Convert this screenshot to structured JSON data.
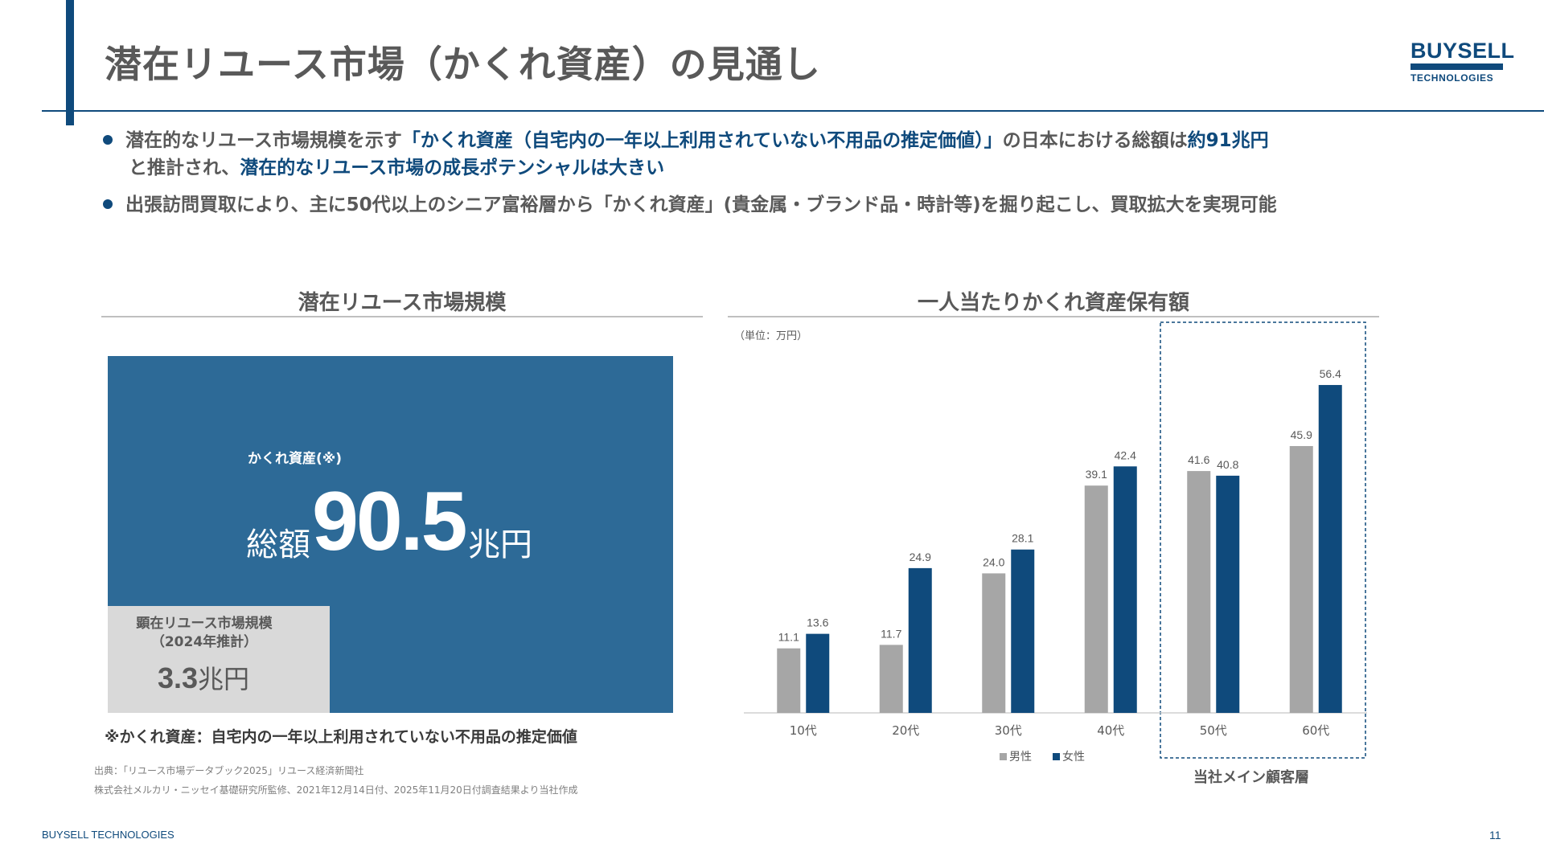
{
  "header": {
    "title": "潜在リユース市場（かくれ資産）の見通し",
    "logo_main": "BUYSELL",
    "logo_sub": "TECHNOLOGIES"
  },
  "bullets": [
    {
      "line1_a": "潜在的なリユース市場規模を示す",
      "line1_b": "「かくれ資産（自宅内の一年以上利用されていない不用品の推定価値）」",
      "line1_c": "の日本における総額は",
      "line1_d": "約91兆円",
      "line2_a": "と推計され、",
      "line2_b": "潜在的なリユース市場の成長ポテンシャルは大きい"
    },
    {
      "text": "出張訪問買取により、主に50代以上のシニア富裕層から「かくれ資産」(貴金属・ブランド品・時計等)を掘り起こし、買取拡大を実現可能"
    }
  ],
  "left_panel": {
    "section_title": "潜在リユース市場規模",
    "hidden_asset_label": "かくれ資産(※)",
    "total_prefix": "総額",
    "total_value": "90.5",
    "total_unit": "兆円",
    "current_label_line1": "顕在リユース市場規模",
    "current_label_line2": "（2024年推計）",
    "current_value": "3.3",
    "current_unit": "兆円",
    "footnote": "※かくれ資産：自宅内の一年以上利用されていない不用品の推定価値",
    "source_1": "出典：「リユース市場データブック2025」リユース経済新聞社",
    "source_2": "株式会社メルカリ・ニッセイ基礎研究所監修、2021年12月14日付、2025年11月20日付調査結果より当社作成"
  },
  "right_panel": {
    "section_title": "一人当たりかくれ資産保有額",
    "unit_label": "（単位：万円）",
    "main_customer_label": "当社メイン顧客層"
  },
  "chart_data": {
    "type": "bar",
    "title": "一人当たりかくれ資産保有額",
    "unit": "（単位：万円）",
    "categories": [
      "10代",
      "20代",
      "30代",
      "40代",
      "50代",
      "60代"
    ],
    "series": [
      {
        "name": "男性",
        "color": "#a6a6a6",
        "values": [
          11.1,
          11.7,
          24.0,
          39.1,
          41.6,
          45.9
        ],
        "labels": [
          "11.1",
          "11.7",
          "24.0",
          "39.1",
          "41.6",
          "45.9"
        ]
      },
      {
        "name": "女性",
        "color": "#0f4a7c",
        "values": [
          13.6,
          24.9,
          28.1,
          42.4,
          40.8,
          56.4
        ],
        "labels": [
          "13.6",
          "24.9",
          "28.1",
          "42.4",
          "40.8",
          "56.4"
        ]
      }
    ],
    "ylim": [
      0,
      60
    ],
    "grid": false,
    "legend": "bottom",
    "highlight_categories": [
      "50代",
      "60代"
    ],
    "highlight_label": "当社メイン顧客層"
  },
  "footer": {
    "brand": "BUYSELL TECHNOLOGIES",
    "page_number": "11"
  }
}
